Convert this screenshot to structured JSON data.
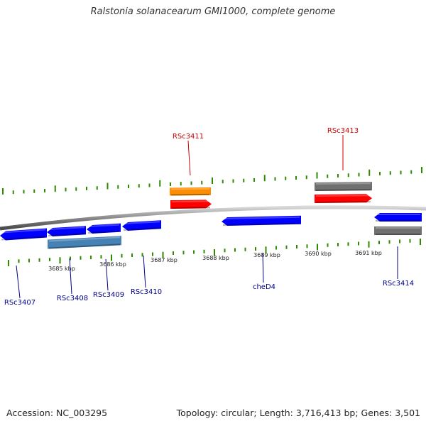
{
  "title": "Ralstonia solanacearum GMI1000, complete genome",
  "footer": {
    "accession": "Accession: NC_003295",
    "topology": "Topology: circular; Length: 3,716,413 bp; Genes: 3,501"
  },
  "colors": {
    "plus_gene": "#ff0000",
    "minus_gene": "#0000ff",
    "orange_gene": "#ff8c00",
    "gray_gene": "#707070",
    "steelblue_gene": "#4682b4",
    "tick": "#2e8b00",
    "backbone": "#909090",
    "red_label": "#cc0000",
    "blue_label": "#00008b"
  },
  "kbp_ticks": [
    "3685 kbp",
    "3686 kbp",
    "3687 kbp",
    "3688 kbp",
    "3689 kbp",
    "3690 kbp",
    "3691 kbp"
  ],
  "gene_labels": [
    {
      "name": "RSc3411",
      "strand": "+"
    },
    {
      "name": "RSc3413",
      "strand": "+"
    },
    {
      "name": "RSc3407",
      "strand": "-"
    },
    {
      "name": "RSc3408",
      "strand": "-"
    },
    {
      "name": "RSc3409",
      "strand": "-"
    },
    {
      "name": "RSc3410",
      "strand": "-"
    },
    {
      "name": "cheD4",
      "strand": "-"
    },
    {
      "name": "RSc3414",
      "strand": "-"
    }
  ]
}
